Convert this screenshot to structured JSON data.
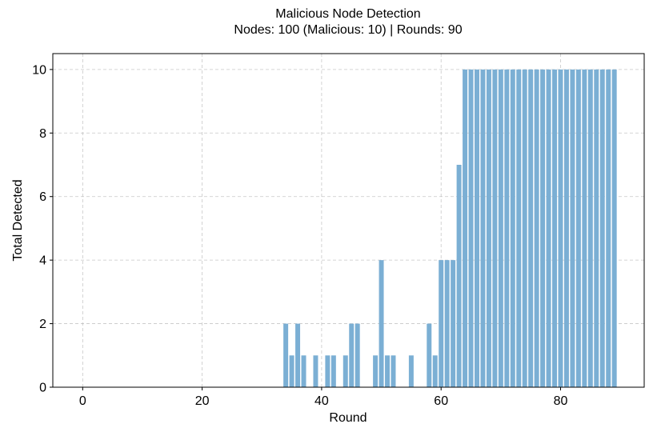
{
  "chart_data": {
    "type": "bar",
    "title": "Malicious Node Detection",
    "subtitle": "Nodes: 100 (Malicious: 10) | Rounds: 90",
    "xlabel": "Round",
    "ylabel": "Total Detected",
    "xlim": [
      -5,
      94
    ],
    "ylim": [
      0,
      10.5
    ],
    "xticks": [
      0,
      20,
      40,
      60,
      80
    ],
    "yticks": [
      0,
      2,
      4,
      6,
      8,
      10
    ],
    "grid": true,
    "bar_color": "#7bafd4",
    "x": [
      34,
      35,
      36,
      37,
      39,
      41,
      42,
      44,
      45,
      46,
      49,
      50,
      51,
      52,
      55,
      58,
      59,
      60,
      61,
      62,
      63,
      64,
      65,
      66,
      67,
      68,
      69,
      70,
      71,
      72,
      73,
      74,
      75,
      76,
      77,
      78,
      79,
      80,
      81,
      82,
      83,
      84,
      85,
      86,
      87,
      88,
      89
    ],
    "values": [
      2,
      1,
      2,
      1,
      1,
      1,
      1,
      1,
      2,
      2,
      1,
      4,
      1,
      1,
      1,
      2,
      1,
      4,
      4,
      4,
      7,
      10,
      10,
      10,
      10,
      10,
      10,
      10,
      10,
      10,
      10,
      10,
      10,
      10,
      10,
      10,
      10,
      10,
      10,
      10,
      10,
      10,
      10,
      10,
      10,
      10,
      10
    ]
  }
}
